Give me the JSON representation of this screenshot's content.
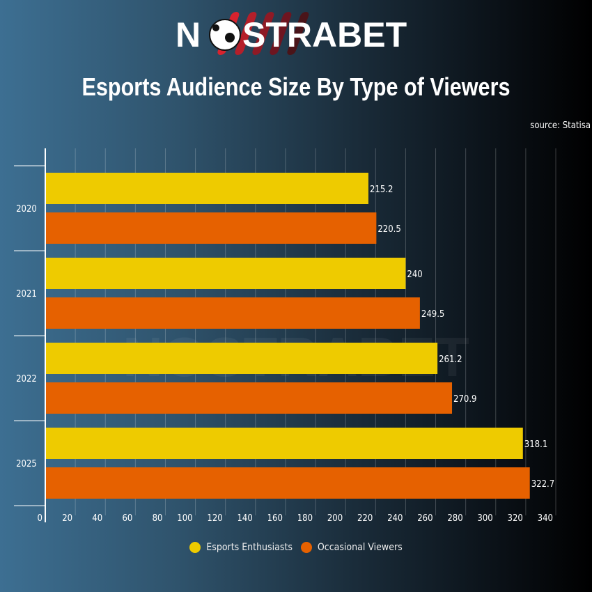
{
  "brand": "NOSTRABET",
  "title": "Esports Audience Size By Type of Viewers",
  "source": "source: Statisa",
  "chart_data": {
    "type": "bar",
    "orientation": "horizontal",
    "categories": [
      "2020",
      "2021",
      "2022",
      "2025"
    ],
    "series": [
      {
        "name": "Esports Enthusiasts",
        "color": "#eecb00",
        "values": [
          215.2,
          240,
          261.2,
          318.1
        ]
      },
      {
        "name": "Occasional Viewers",
        "color": "#e66100",
        "values": [
          220.5,
          249.5,
          270.9,
          322.7
        ]
      }
    ],
    "xlim": [
      0,
      340
    ],
    "xticks": [
      0,
      20,
      40,
      60,
      80,
      100,
      120,
      140,
      160,
      180,
      200,
      220,
      240,
      260,
      280,
      300,
      320,
      340
    ],
    "grid": true,
    "legend": "bottom"
  }
}
